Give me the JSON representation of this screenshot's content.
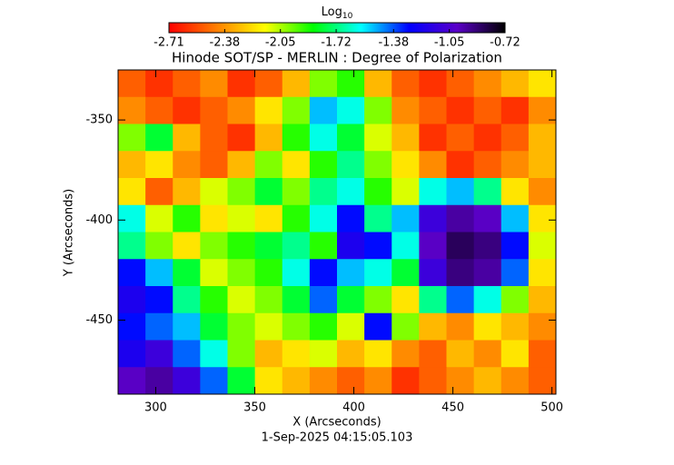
{
  "chart_data": {
    "type": "image",
    "title": "Hinode SOT/SP - MERLIN : Degree of Polarization",
    "xlabel": "X (Arcseconds)",
    "ylabel": "Y (Arcseconds)",
    "footer": "1-Sep-2025 04:15:05.103",
    "colorbar_label": "Log",
    "colorbar_label_sub": "10",
    "colormap": [
      "#ff0000",
      "#ff8000",
      "#ffff00",
      "#00ff00",
      "#00ffff",
      "#0000ff",
      "#5a00c8",
      "#000000"
    ],
    "clim": [
      -2.71,
      -0.72
    ],
    "cticks": [
      -2.71,
      -2.38,
      -2.05,
      -1.72,
      -1.38,
      -1.05,
      -0.72
    ],
    "xlim": [
      281,
      502
    ],
    "ylim": [
      -487,
      -325
    ],
    "xticks": [
      300,
      350,
      400,
      450,
      500
    ],
    "yticks": [
      -350,
      -400,
      -450
    ],
    "z": [
      [
        -2.5,
        -2.6,
        -2.5,
        -2.4,
        -2.6,
        -2.5,
        -2.3,
        -2.0,
        -1.9,
        -2.3,
        -2.5,
        -2.6,
        -2.5,
        -2.4,
        -2.3,
        -2.2
      ],
      [
        -2.4,
        -2.5,
        -2.6,
        -2.5,
        -2.4,
        -2.2,
        -2.0,
        -1.5,
        -1.6,
        -2.0,
        -2.4,
        -2.5,
        -2.6,
        -2.5,
        -2.6,
        -2.4
      ],
      [
        -2.0,
        -1.8,
        -2.3,
        -2.5,
        -2.6,
        -2.3,
        -1.9,
        -1.6,
        -1.8,
        -2.1,
        -2.3,
        -2.6,
        -2.5,
        -2.6,
        -2.5,
        -2.3
      ],
      [
        -2.3,
        -2.2,
        -2.4,
        -2.5,
        -2.3,
        -2.0,
        -2.2,
        -1.9,
        -1.7,
        -2.0,
        -2.2,
        -2.4,
        -2.6,
        -2.5,
        -2.4,
        -2.3
      ],
      [
        -2.2,
        -2.5,
        -2.3,
        -2.1,
        -2.0,
        -1.8,
        -2.0,
        -1.7,
        -1.6,
        -1.9,
        -2.1,
        -1.6,
        -1.5,
        -1.7,
        -2.2,
        -2.4
      ],
      [
        -1.6,
        -2.1,
        -1.9,
        -2.2,
        -2.1,
        -2.2,
        -1.9,
        -1.6,
        -1.3,
        -1.7,
        -1.5,
        -1.1,
        -0.95,
        -1.0,
        -1.5,
        -2.2
      ],
      [
        -1.7,
        -2.0,
        -2.2,
        -2.0,
        -1.9,
        -1.8,
        -1.7,
        -1.9,
        -1.2,
        -1.3,
        -1.6,
        -1.0,
        -0.85,
        -0.9,
        -1.3,
        -2.1
      ],
      [
        -1.3,
        -1.5,
        -1.8,
        -2.1,
        -2.0,
        -1.9,
        -1.6,
        -1.3,
        -1.5,
        -1.6,
        -1.8,
        -1.1,
        -0.9,
        -0.95,
        -1.4,
        -2.2
      ],
      [
        -1.2,
        -1.3,
        -1.7,
        -1.9,
        -2.1,
        -2.0,
        -1.8,
        -1.4,
        -1.8,
        -2.0,
        -2.2,
        -1.7,
        -1.4,
        -1.6,
        -2.0,
        -2.3
      ],
      [
        -1.3,
        -1.4,
        -1.5,
        -1.8,
        -2.0,
        -2.1,
        -2.0,
        -1.9,
        -2.1,
        -1.3,
        -2.0,
        -2.3,
        -2.4,
        -2.2,
        -2.3,
        -2.4
      ],
      [
        -1.2,
        -1.1,
        -1.4,
        -1.6,
        -2.0,
        -2.3,
        -2.2,
        -2.1,
        -2.3,
        -2.2,
        -2.4,
        -2.5,
        -2.3,
        -2.4,
        -2.2,
        -2.5
      ],
      [
        -1.0,
        -0.95,
        -1.1,
        -1.4,
        -1.8,
        -2.2,
        -2.3,
        -2.4,
        -2.5,
        -2.4,
        -2.6,
        -2.5,
        -2.4,
        -2.3,
        -2.4,
        -2.5
      ]
    ]
  }
}
